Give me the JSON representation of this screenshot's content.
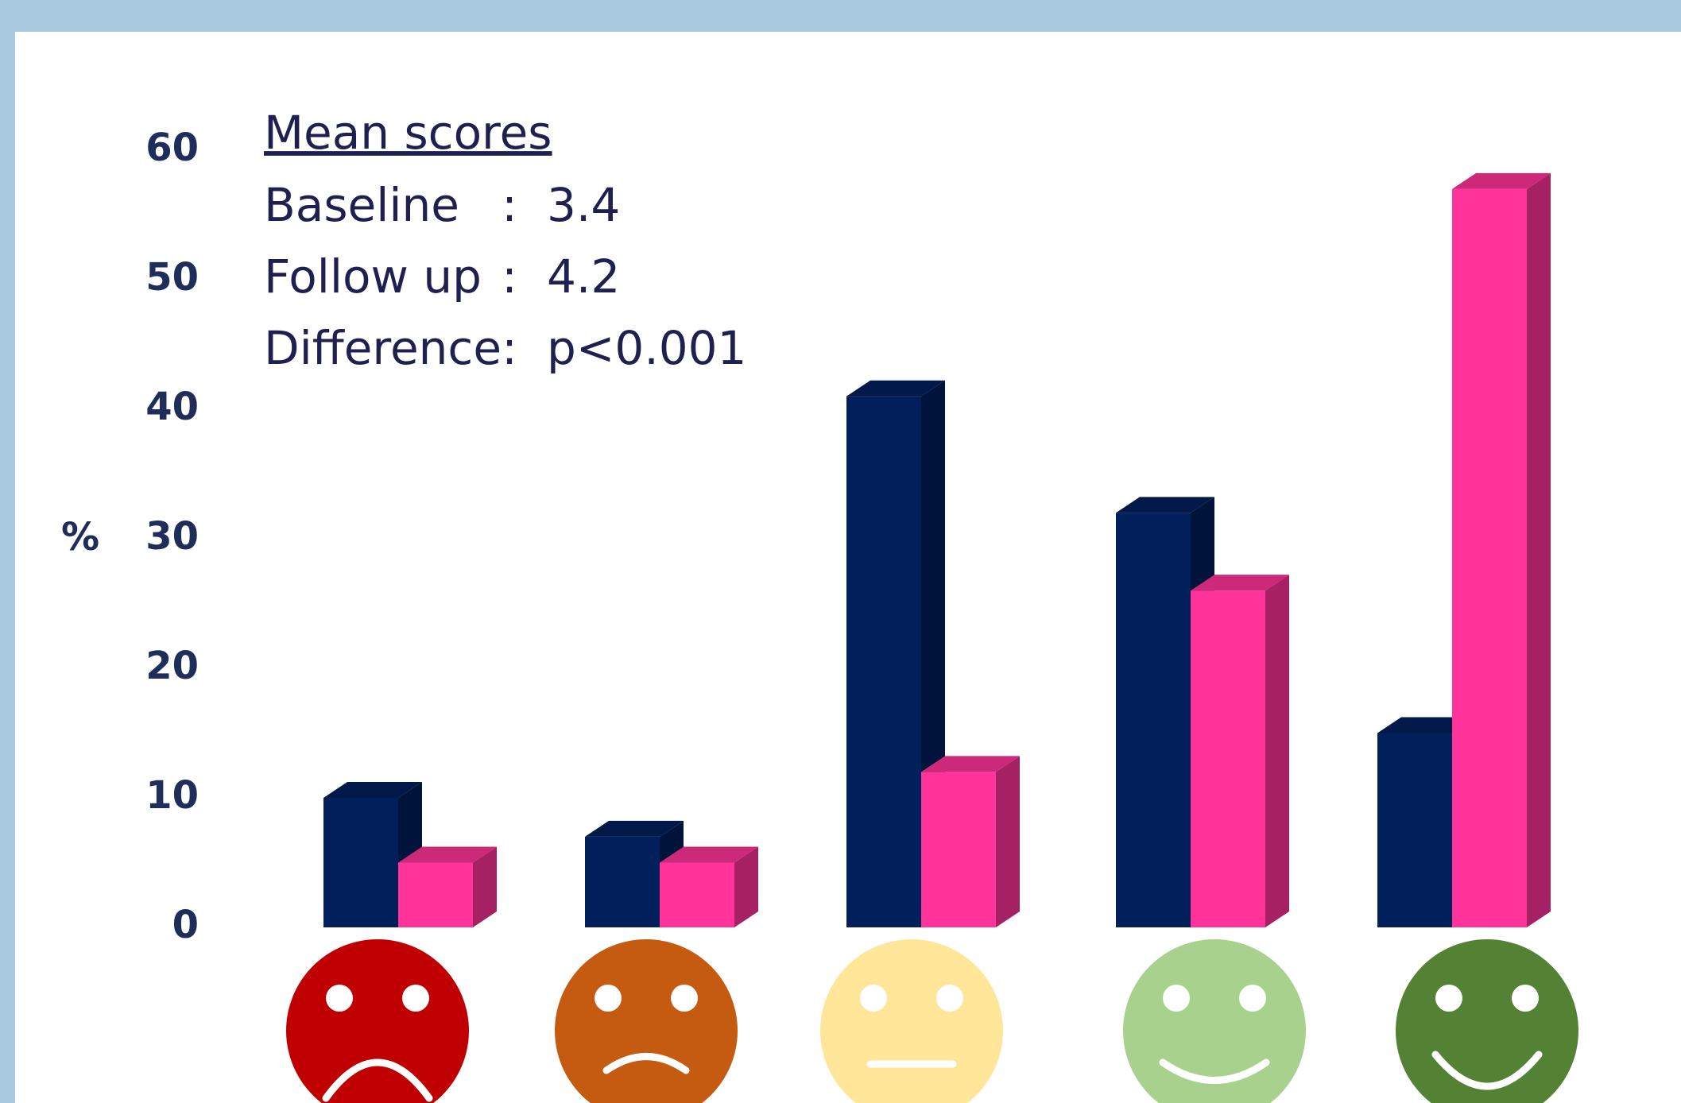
{
  "chart_data": {
    "type": "bar3d",
    "ylabel": "%",
    "categories": [
      null,
      null,
      null,
      null,
      null
    ],
    "series": [
      {
        "color": "#001f5b",
        "values": [
          10,
          7,
          41,
          32,
          15
        ]
      },
      {
        "color": "#ff3399",
        "values": [
          5,
          5,
          12,
          26,
          57
        ]
      }
    ],
    "ylim": [
      0,
      60
    ],
    "yticks": [
      0,
      10,
      20,
      30,
      40,
      50,
      60
    ],
    "grid": false,
    "annotation": {
      "heading": "Mean scores",
      "separator": ":",
      "lines": [
        {
          "label": "Baseline",
          "value": 3.4
        },
        {
          "label": "Follow up",
          "value": 4.2
        },
        {
          "label": "Difference",
          "value": "p<0.001"
        }
      ]
    }
  }
}
